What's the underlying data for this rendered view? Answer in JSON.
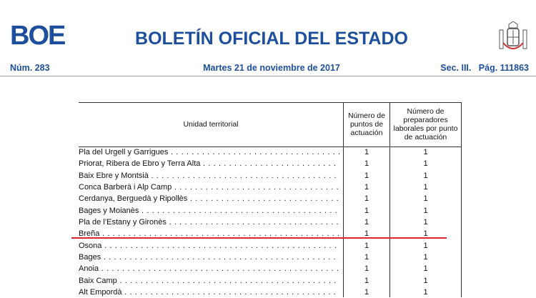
{
  "header": {
    "logo": "BOE",
    "title": "BOLETÍN OFICIAL DEL ESTADO",
    "number": "Núm. 283",
    "date": "Martes 21 de noviembre de 2017",
    "section": "Sec. III.   Pág. 111863"
  },
  "table": {
    "columns": [
      "Unidad territorial",
      "Número de puntos de actuación",
      "Número de preparadores laborales por punto de actuación"
    ],
    "rows": [
      [
        "Pla del Urgell y Garrigues",
        1,
        1
      ],
      [
        "Priorat, Ribera de Ebro y Terra Alta",
        1,
        1
      ],
      [
        "Baix Ebre y Montsià",
        1,
        1
      ],
      [
        "Conca Barberà i Alp Camp",
        1,
        1
      ],
      [
        "Cerdanya, Berguedà y Ripollès",
        1,
        1
      ],
      [
        "Bages y Moianès",
        1,
        1
      ],
      [
        "Pla de l’Estany y Gironès",
        1,
        1
      ],
      [
        "Breña",
        1,
        1
      ],
      [
        "Osona",
        1,
        1
      ],
      [
        "Bages",
        1,
        1
      ],
      [
        "Anoia",
        1,
        1
      ],
      [
        "Baix Camp",
        1,
        1
      ],
      [
        "Alt Empordà",
        1,
        1
      ]
    ]
  }
}
